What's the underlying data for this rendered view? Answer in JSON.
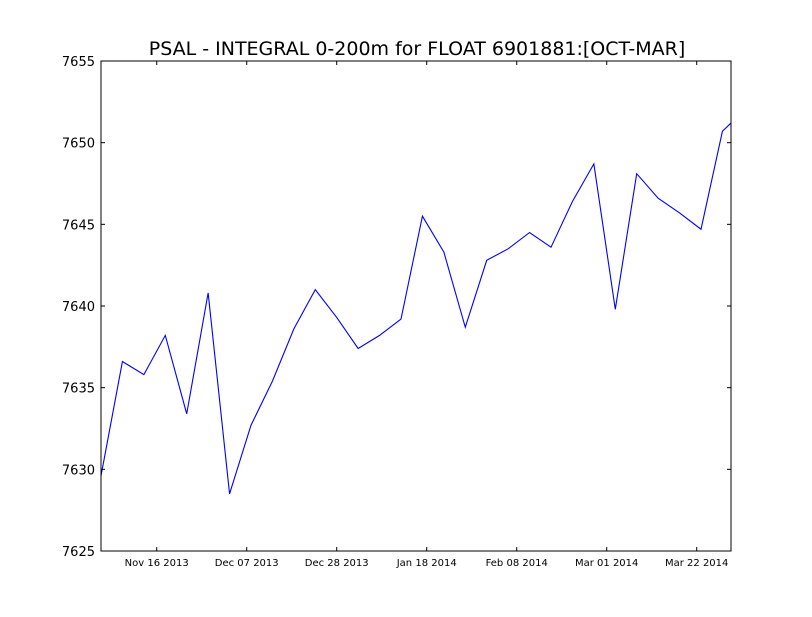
{
  "chart_data": {
    "type": "line",
    "title": "PSAL - INTEGRAL 0-200m for FLOAT 6901881:[OCT-MAR]",
    "xlabel": "",
    "ylabel": "",
    "ylim": [
      7625,
      7655
    ],
    "xlim": [
      "2013-11-03",
      "2014-03-30"
    ],
    "y_ticks": [
      {
        "value": 7625,
        "label": "7625"
      },
      {
        "value": 7630,
        "label": "7630"
      },
      {
        "value": 7635,
        "label": "7635"
      },
      {
        "value": 7640,
        "label": "7640"
      },
      {
        "value": 7645,
        "label": "7645"
      },
      {
        "value": 7650,
        "label": "7650"
      },
      {
        "value": 7655,
        "label": "7655"
      }
    ],
    "x_ticks": [
      {
        "value": "2013-11-16",
        "label": "Nov 16 2013"
      },
      {
        "value": "2013-12-07",
        "label": "Dec 07 2013"
      },
      {
        "value": "2013-12-28",
        "label": "Dec 28 2013"
      },
      {
        "value": "2014-01-18",
        "label": "Jan 18 2014"
      },
      {
        "value": "2014-02-08",
        "label": "Feb 08 2014"
      },
      {
        "value": "2014-03-01",
        "label": "Mar 01 2014"
      },
      {
        "value": "2014-03-22",
        "label": "Mar 22 2014"
      }
    ],
    "grid": false,
    "legend": "none",
    "series": [
      {
        "color": "#0000ff",
        "x": [
          "2013-11-03",
          "2013-11-08",
          "2013-11-13",
          "2013-11-18",
          "2013-11-23",
          "2013-11-28",
          "2013-12-03",
          "2013-12-08",
          "2013-12-13",
          "2013-12-18",
          "2013-12-23",
          "2013-12-28",
          "2014-01-02",
          "2014-01-07",
          "2014-01-12",
          "2014-01-17",
          "2014-01-22",
          "2014-01-27",
          "2014-02-01",
          "2014-02-06",
          "2014-02-11",
          "2014-02-16",
          "2014-02-21",
          "2014-02-26",
          "2014-03-03",
          "2014-03-08",
          "2014-03-13",
          "2014-03-18",
          "2014-03-23",
          "2014-03-28"
        ],
        "y": [
          7629.6,
          7636.6,
          7635.8,
          7638.2,
          7633.4,
          7640.8,
          7628.5,
          7632.7,
          7635.4,
          7638.6,
          7641.0,
          7639.3,
          7637.4,
          7638.2,
          7639.2,
          7645.5,
          7643.3,
          7638.7,
          7642.8,
          7643.5,
          7644.5,
          7643.6,
          7646.4,
          7648.7,
          7639.8,
          7648.1,
          7646.6,
          7645.7,
          7644.7,
          7650.7
        ]
      }
    ],
    "last_point": {
      "x": "2014-03-30",
      "y": 7651.2
    }
  }
}
